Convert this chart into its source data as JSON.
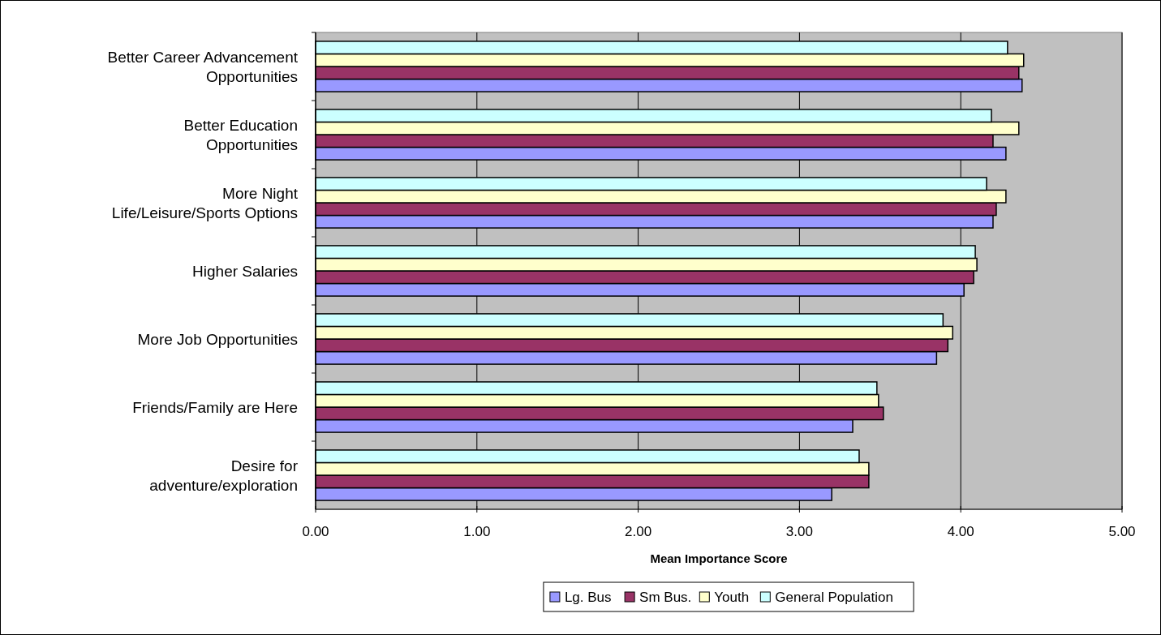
{
  "chart_data": {
    "type": "bar",
    "orientation": "horizontal",
    "xlabel": "Mean Importance Score",
    "categories": [
      "Better Career Advancement Opportunities",
      "Better Education Opportunities",
      "More Night Life/Leisure/Sports Options",
      "Higher Salaries",
      "More Job Opportunities",
      "Friends/Family are Here",
      "Desire for adventure/exploration"
    ],
    "series": [
      {
        "name": "Lg. Bus",
        "color": "#9999ff",
        "values": [
          4.38,
          4.28,
          4.2,
          4.02,
          3.85,
          3.33,
          3.2
        ]
      },
      {
        "name": "Sm Bus.",
        "color": "#993366",
        "values": [
          4.36,
          4.2,
          4.22,
          4.08,
          3.92,
          3.52,
          3.43
        ]
      },
      {
        "name": "Youth",
        "color": "#ffffcc",
        "values": [
          4.39,
          4.36,
          4.28,
          4.1,
          3.95,
          3.49,
          3.43
        ]
      },
      {
        "name": "General Population",
        "color": "#ccffff",
        "values": [
          4.29,
          4.19,
          4.16,
          4.09,
          3.89,
          3.48,
          3.37
        ]
      }
    ],
    "xlim": [
      0,
      5
    ],
    "xticks": [
      {
        "value": 0,
        "label": "0.00"
      },
      {
        "value": 1,
        "label": "1.00"
      },
      {
        "value": 2,
        "label": "2.00"
      },
      {
        "value": 3,
        "label": "3.00"
      },
      {
        "value": 4,
        "label": "4.00"
      },
      {
        "value": 5,
        "label": "5.00"
      }
    ],
    "grid": "x",
    "legend": "bottom"
  }
}
